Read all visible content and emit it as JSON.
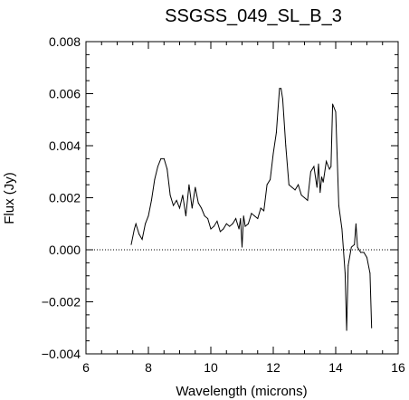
{
  "chart_data": {
    "type": "line",
    "title": "SSGSS_049_SL_B_3",
    "xlabel": "Wavelength (microns)",
    "ylabel": "Flux (Jy)",
    "xlim": [
      6,
      16
    ],
    "ylim": [
      -0.004,
      0.008
    ],
    "xticks": [
      "6",
      "8",
      "10",
      "12",
      "14",
      "16"
    ],
    "yticks": [
      "−0.004",
      "−0.002",
      "0.000",
      "0.002",
      "0.004",
      "0.006",
      "0.008"
    ],
    "grid": false,
    "reference_line": {
      "y": 0.0,
      "style": "dotted"
    },
    "series": [
      {
        "x": [
          7.45,
          7.55,
          7.6,
          7.7,
          7.8,
          7.9,
          8.0,
          8.1,
          8.2,
          8.3,
          8.4,
          8.5,
          8.6,
          8.7,
          8.8,
          8.9,
          9.0,
          9.1,
          9.2,
          9.3,
          9.4,
          9.5,
          9.6,
          9.7,
          9.8,
          9.9,
          10.0,
          10.1,
          10.2,
          10.3,
          10.4,
          10.5,
          10.6,
          10.7,
          10.8,
          10.9,
          10.95,
          11.0,
          11.05,
          11.1,
          11.2,
          11.3,
          11.4,
          11.5,
          11.6,
          11.7,
          11.8,
          11.9,
          12.0,
          12.1,
          12.2,
          12.25,
          12.3,
          12.4,
          12.5,
          12.6,
          12.7,
          12.8,
          12.9,
          13.0,
          13.1,
          13.2,
          13.3,
          13.4,
          13.45,
          13.5,
          13.55,
          13.6,
          13.7,
          13.8,
          13.85,
          13.9,
          14.0,
          14.1,
          14.2,
          14.3,
          14.35,
          14.4,
          14.5,
          14.6,
          14.65,
          14.7,
          14.8,
          14.9,
          15.0,
          15.1,
          15.15
        ],
        "y": [
          0.0002,
          0.0008,
          0.001,
          0.0006,
          0.0004,
          0.001,
          0.0013,
          0.0019,
          0.0027,
          0.0032,
          0.0035,
          0.0035,
          0.0031,
          0.0021,
          0.0017,
          0.0019,
          0.0016,
          0.0021,
          0.0013,
          0.0025,
          0.0016,
          0.0024,
          0.0018,
          0.0016,
          0.0013,
          0.0012,
          0.0008,
          0.0009,
          0.0011,
          0.0007,
          0.0008,
          0.001,
          0.0009,
          0.001,
          0.0012,
          0.0008,
          0.0012,
          0.0001,
          0.0013,
          0.0009,
          0.001,
          0.0014,
          0.0013,
          0.0012,
          0.0016,
          0.0015,
          0.0025,
          0.0027,
          0.0037,
          0.0045,
          0.0062,
          0.0062,
          0.0058,
          0.004,
          0.0025,
          0.0024,
          0.0023,
          0.0025,
          0.0021,
          0.002,
          0.0019,
          0.003,
          0.0032,
          0.0024,
          0.0033,
          0.0022,
          0.0028,
          0.0026,
          0.0034,
          0.0031,
          0.0032,
          0.0056,
          0.0053,
          0.0017,
          0.0008,
          -0.0009,
          -0.0031,
          -0.0006,
          0.0001,
          0.0002,
          0.001,
          0.0001,
          -0.0001,
          -0.0001,
          -0.0003,
          -0.0009,
          -0.003
        ]
      }
    ]
  }
}
